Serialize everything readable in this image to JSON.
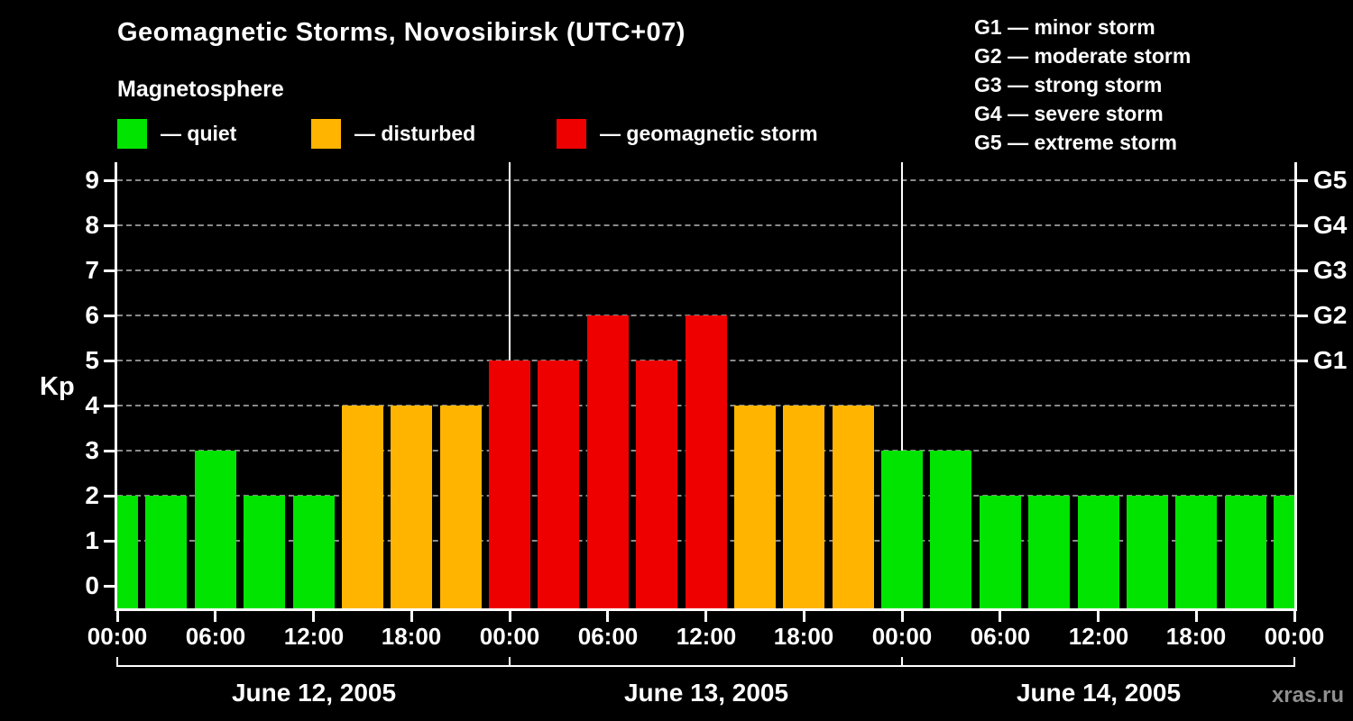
{
  "title": "Geomagnetic Storms, Novosibirsk (UTC+07)",
  "subtitle": "Magnetosphere",
  "legend": [
    {
      "key": "quiet",
      "label": "— quiet"
    },
    {
      "key": "disturbed",
      "label": "— disturbed"
    },
    {
      "key": "storm",
      "label": "— geomagnetic storm"
    }
  ],
  "storm_scale_legend": [
    {
      "label": "G1 — minor storm"
    },
    {
      "label": "G2 — moderate storm"
    },
    {
      "label": "G3 — strong storm"
    },
    {
      "label": "G4 — severe storm"
    },
    {
      "label": "G5 — extreme storm"
    }
  ],
  "watermark": "xras.ru",
  "chart_data": {
    "type": "bar",
    "title": "Geomagnetic Storms, Novosibirsk (UTC+07)",
    "ylabel": "Kp",
    "ylim": [
      0,
      9.4
    ],
    "y_ticks": [
      0,
      1,
      2,
      3,
      4,
      5,
      6,
      7,
      8,
      9
    ],
    "grid": "horizontal-dashed",
    "legend_position": "top-left",
    "colors": {
      "quiet": "#00e400",
      "disturbed": "#ffb400",
      "storm": "#ee0000",
      "axis": "#ffffff",
      "background": "#000000"
    },
    "right_axis_labels": [
      {
        "label": "G1",
        "kp": 5
      },
      {
        "label": "G2",
        "kp": 6
      },
      {
        "label": "G3",
        "kp": 7
      },
      {
        "label": "G4",
        "kp": 8
      },
      {
        "label": "G5",
        "kp": 9
      }
    ],
    "x_tick_labels": [
      {
        "hour": 0,
        "label": "00:00"
      },
      {
        "hour": 6,
        "label": "06:00"
      },
      {
        "hour": 12,
        "label": "12:00"
      },
      {
        "hour": 18,
        "label": "18:00"
      },
      {
        "hour": 24,
        "label": "00:00"
      },
      {
        "hour": 30,
        "label": "06:00"
      },
      {
        "hour": 36,
        "label": "12:00"
      },
      {
        "hour": 42,
        "label": "18:00"
      },
      {
        "hour": 48,
        "label": "00:00"
      },
      {
        "hour": 54,
        "label": "06:00"
      },
      {
        "hour": 60,
        "label": "12:00"
      },
      {
        "hour": 66,
        "label": "18:00"
      },
      {
        "hour": 72,
        "label": "00:00"
      }
    ],
    "days": [
      {
        "label": "June 12, 2005",
        "start_hour": 0,
        "end_hour": 24
      },
      {
        "label": "June 13, 2005",
        "start_hour": 24,
        "end_hour": 48
      },
      {
        "label": "June 14, 2005",
        "start_hour": 48,
        "end_hour": 72
      }
    ],
    "bars": [
      {
        "hour": 0,
        "kp": 2,
        "status": "quiet"
      },
      {
        "hour": 3,
        "kp": 2,
        "status": "quiet"
      },
      {
        "hour": 6,
        "kp": 3,
        "status": "quiet"
      },
      {
        "hour": 9,
        "kp": 2,
        "status": "quiet"
      },
      {
        "hour": 12,
        "kp": 2,
        "status": "quiet"
      },
      {
        "hour": 15,
        "kp": 4,
        "status": "disturbed"
      },
      {
        "hour": 18,
        "kp": 4,
        "status": "disturbed"
      },
      {
        "hour": 21,
        "kp": 4,
        "status": "disturbed"
      },
      {
        "hour": 24,
        "kp": 5,
        "status": "storm"
      },
      {
        "hour": 27,
        "kp": 5,
        "status": "storm"
      },
      {
        "hour": 30,
        "kp": 6,
        "status": "storm"
      },
      {
        "hour": 33,
        "kp": 5,
        "status": "storm"
      },
      {
        "hour": 36,
        "kp": 6,
        "status": "storm"
      },
      {
        "hour": 39,
        "kp": 4,
        "status": "disturbed"
      },
      {
        "hour": 42,
        "kp": 4,
        "status": "disturbed"
      },
      {
        "hour": 45,
        "kp": 4,
        "status": "disturbed"
      },
      {
        "hour": 48,
        "kp": 3,
        "status": "quiet"
      },
      {
        "hour": 51,
        "kp": 3,
        "status": "quiet"
      },
      {
        "hour": 54,
        "kp": 2,
        "status": "quiet"
      },
      {
        "hour": 57,
        "kp": 2,
        "status": "quiet"
      },
      {
        "hour": 60,
        "kp": 2,
        "status": "quiet"
      },
      {
        "hour": 63,
        "kp": 2,
        "status": "quiet"
      },
      {
        "hour": 66,
        "kp": 2,
        "status": "quiet"
      },
      {
        "hour": 69,
        "kp": 2,
        "status": "quiet"
      },
      {
        "hour": 72,
        "kp": 2,
        "status": "quiet"
      }
    ]
  }
}
